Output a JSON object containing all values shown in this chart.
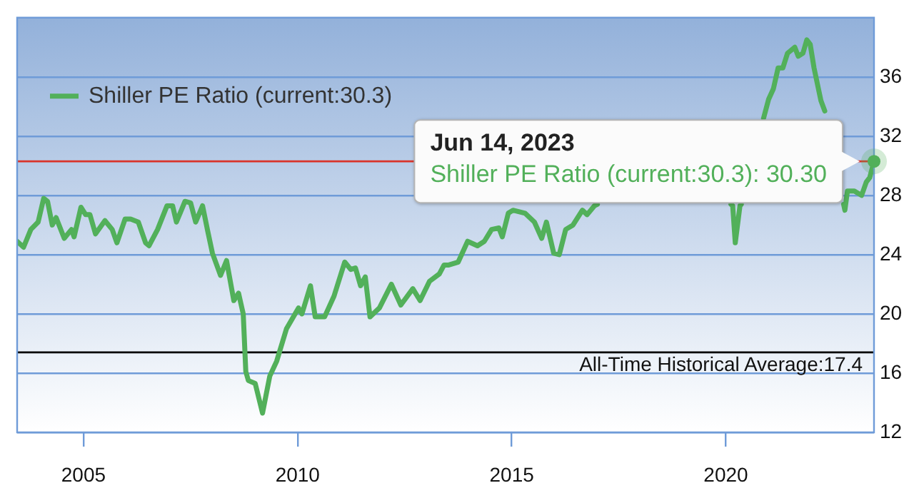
{
  "chart_data": {
    "type": "line",
    "xlim": [
      2003.45,
      2023.46
    ],
    "xticks": [
      2005,
      2010,
      2015,
      2020
    ],
    "ylim": [
      12,
      40
    ],
    "yticks": [
      12,
      16,
      20,
      24,
      28,
      32,
      36
    ],
    "grid": "y",
    "legend": "top left",
    "marker": "none",
    "line_style": "solid",
    "series": [
      {
        "name": "Shiller PE Ratio (current:30.3)",
        "color": "#52b05a",
        "x": [
          2003.45,
          2003.6,
          2003.77,
          2003.94,
          2004.07,
          2004.16,
          2004.27,
          2004.36,
          2004.55,
          2004.72,
          2004.78,
          2004.94,
          2005.05,
          2005.15,
          2005.28,
          2005.5,
          2005.67,
          2005.78,
          2005.97,
          2006.1,
          2006.28,
          2006.45,
          2006.53,
          2006.73,
          2006.95,
          2007.08,
          2007.17,
          2007.37,
          2007.5,
          2007.62,
          2007.78,
          2007.9,
          2008.01,
          2008.2,
          2008.34,
          2008.51,
          2008.62,
          2008.73,
          2008.79,
          2008.85,
          2009.01,
          2009.18,
          2009.35,
          2009.51,
          2009.74,
          2010.02,
          2010.1,
          2010.3,
          2010.41,
          2010.63,
          2010.85,
          2011.1,
          2011.24,
          2011.35,
          2011.47,
          2011.58,
          2011.69,
          2011.91,
          2012.19,
          2012.41,
          2012.69,
          2012.86,
          2013.08,
          2013.31,
          2013.42,
          2013.53,
          2013.75,
          2013.97,
          2014.2,
          2014.36,
          2014.53,
          2014.7,
          2014.78,
          2014.92,
          2015.03,
          2015.31,
          2015.53,
          2015.7,
          2015.81,
          2015.98,
          2016.11,
          2016.26,
          2016.43,
          2016.65,
          2016.76,
          2016.93,
          2017.0,
          2017.5,
          2017.98,
          2018.04,
          2018.1,
          2019.0,
          2020.12,
          2020.16,
          2020.22,
          2020.33,
          2020.36,
          2020.6,
          2020.85,
          2020.88,
          2021.0,
          2021.11,
          2021.22,
          2021.33,
          2021.44,
          2021.61,
          2021.69,
          2021.8,
          2021.89,
          2021.97,
          2022.06,
          2022.22,
          2022.31,
          2022.33,
          2022.5,
          2022.75,
          2022.78,
          2022.84,
          2023.0,
          2023.17,
          2023.28,
          2023.36,
          2023.46
        ],
        "values": [
          24.9,
          24.5,
          25.7,
          26.2,
          27.8,
          27.6,
          26.0,
          26.5,
          25.1,
          25.7,
          25.2,
          27.2,
          26.7,
          26.7,
          25.4,
          26.3,
          25.7,
          24.8,
          26.4,
          26.4,
          26.2,
          24.8,
          24.6,
          25.7,
          27.3,
          27.3,
          26.2,
          27.6,
          27.5,
          26.2,
          27.3,
          25.6,
          24.1,
          22.6,
          23.6,
          20.9,
          21.4,
          20.0,
          16.1,
          15.5,
          15.3,
          13.3,
          15.8,
          16.8,
          19.0,
          20.4,
          20.0,
          21.9,
          19.8,
          19.8,
          21.2,
          23.5,
          23.0,
          23.1,
          21.9,
          22.5,
          19.8,
          20.4,
          22.0,
          20.6,
          21.7,
          20.9,
          22.2,
          22.7,
          23.3,
          23.3,
          23.5,
          24.9,
          24.6,
          24.9,
          25.7,
          25.8,
          25.2,
          26.8,
          27.0,
          26.8,
          26.2,
          25.1,
          26.2,
          24.1,
          24.0,
          25.7,
          26.0,
          27.0,
          26.7,
          27.3,
          27.4,
          null,
          null,
          null,
          null,
          null,
          27.4,
          27.3,
          24.8,
          27.3,
          27.4,
          null,
          null,
          33.2,
          34.5,
          35.2,
          36.6,
          36.6,
          37.6,
          38.0,
          37.4,
          37.6,
          38.5,
          38.2,
          36.6,
          34.4,
          33.7,
          null,
          null,
          27.4,
          27.0,
          28.3,
          28.3,
          28.0,
          28.9,
          29.2,
          30.3
        ]
      }
    ],
    "ref_lines": [
      {
        "axis": "y",
        "value": 30.3,
        "color": "#d9342b"
      },
      {
        "axis": "y",
        "value": 17.4,
        "label": "All-Time Historical Average:17.4",
        "color": "#000000"
      }
    ],
    "annotations": [
      "Jun 14, 2023",
      "Shiller PE Ratio (current:30.3): 30.30"
    ]
  }
}
